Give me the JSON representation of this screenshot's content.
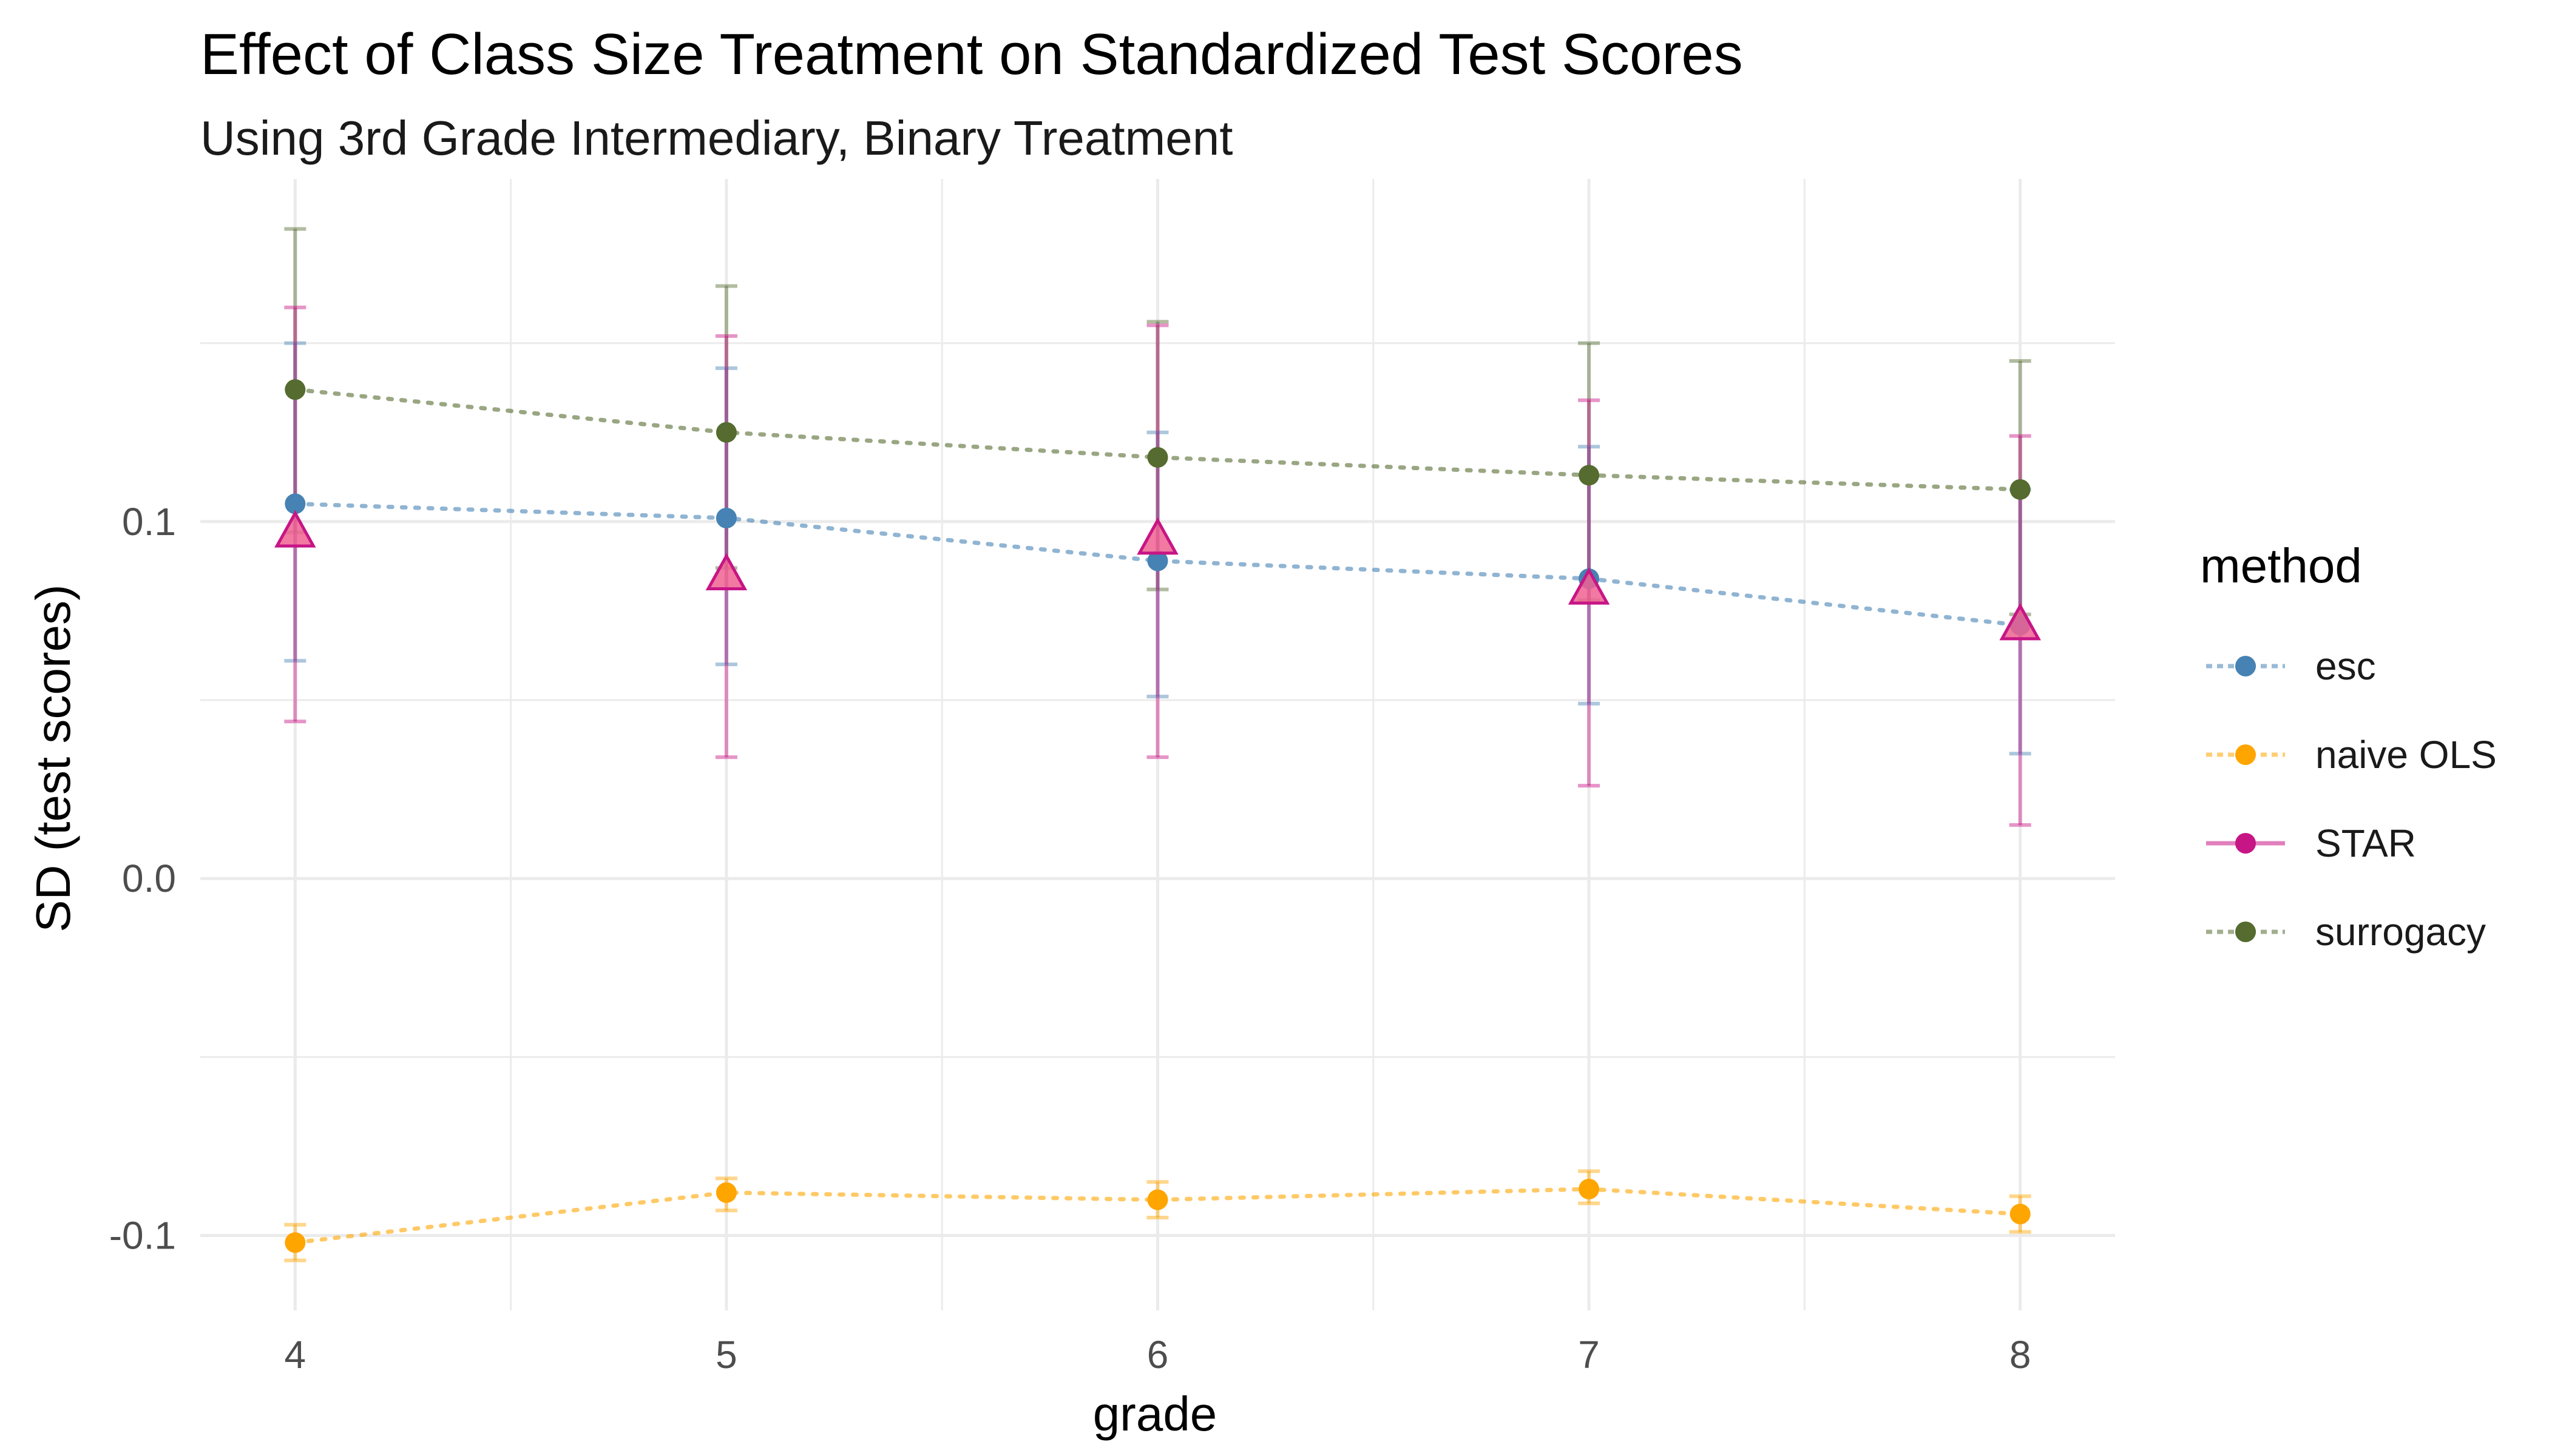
{
  "chart_data": {
    "type": "line",
    "title": "Effect of Class Size Treatment on Standardized Test Scores",
    "subtitle": "Using 3rd Grade Intermediary, Binary Treatment",
    "xlabel": "grade",
    "ylabel": "SD (test scores)",
    "xlim": [
      3.78,
      8.22
    ],
    "ylim": [
      -0.121,
      0.196
    ],
    "x_ticks": [
      4,
      5,
      6,
      7,
      8
    ],
    "y_ticks": [
      -0.1,
      0.0,
      0.1
    ],
    "y_tick_labels": [
      "-0.1",
      "0.0",
      "0.1"
    ],
    "grid": true,
    "legend": {
      "title": "method",
      "position": "right"
    },
    "series": [
      {
        "name": "esc",
        "color": "#4682B4",
        "marker": "circle",
        "line_style": "dotted",
        "x": [
          4,
          5,
          6,
          7,
          8
        ],
        "y": [
          0.105,
          0.101,
          0.089,
          0.084,
          0.071
        ],
        "lower": [
          0.061,
          0.06,
          0.051,
          0.049,
          0.035
        ],
        "upper": [
          0.15,
          0.143,
          0.125,
          0.121,
          0.109
        ]
      },
      {
        "name": "naive OLS",
        "color": "#FFA500",
        "marker": "circle",
        "line_style": "dotted",
        "x": [
          4,
          5,
          6,
          7,
          8
        ],
        "y": [
          -0.102,
          -0.088,
          -0.09,
          -0.087,
          -0.094
        ],
        "lower": [
          -0.107,
          -0.093,
          -0.095,
          -0.091,
          -0.099
        ],
        "upper": [
          -0.097,
          -0.084,
          -0.085,
          -0.082,
          -0.089
        ]
      },
      {
        "name": "STAR",
        "color": "#C71585",
        "marker": "triangle",
        "line_style": "none",
        "x": [
          4,
          5,
          6,
          7,
          8
        ],
        "y": [
          0.097,
          0.085,
          0.095,
          0.081,
          0.071
        ],
        "lower": [
          0.044,
          0.034,
          0.034,
          0.026,
          0.015
        ],
        "upper": [
          0.16,
          0.152,
          0.155,
          0.134,
          0.124
        ]
      },
      {
        "name": "surrogacy",
        "color": "#556B2F",
        "marker": "circle",
        "line_style": "dotted",
        "x": [
          4,
          5,
          6,
          7,
          8
        ],
        "y": [
          0.137,
          0.125,
          0.118,
          0.113,
          0.109
        ],
        "lower": [
          0.097,
          0.087,
          0.081,
          0.078,
          0.074
        ],
        "upper": [
          0.182,
          0.166,
          0.156,
          0.15,
          0.145
        ]
      }
    ]
  }
}
